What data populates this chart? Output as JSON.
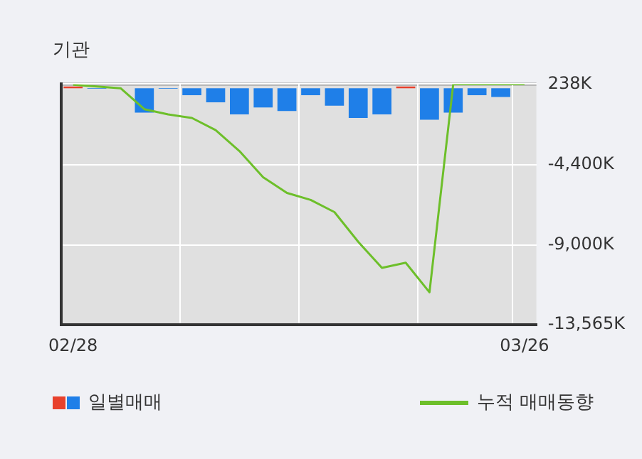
{
  "chart_data": {
    "type": "bar",
    "title": "기관",
    "categories": [
      "02/28",
      null,
      null,
      null,
      null,
      null,
      null,
      null,
      null,
      null,
      null,
      null,
      null,
      null,
      null,
      null,
      null,
      null,
      null,
      "03/26"
    ],
    "series": [
      {
        "name": "일별매매",
        "colors": [
          "#e8412c",
          "#1f7fe8",
          "#1f7fe8",
          "#1f7fe8",
          "#1f7fe8",
          "#1f7fe8",
          "#1f7fe8",
          "#1f7fe8",
          "#1f7fe8",
          "#1f7fe8",
          "#1f7fe8",
          "#1f7fe8",
          "#1f7fe8",
          "#1f7fe8",
          "#e8412c",
          "#1f7fe8",
          "#1f7fe8",
          "#1f7fe8",
          "#1f7fe8",
          "#1f7fe8"
        ],
        "values": [
          100,
          -30,
          null,
          -1400,
          -30,
          -400,
          -800,
          -1500,
          -1100,
          -1300,
          -400,
          -1000,
          -1700,
          -1500,
          100,
          -1800,
          -1400,
          -400,
          -500,
          null
        ]
      },
      {
        "name": "누적 매매동향",
        "type": "line",
        "color": "#6dbf2a",
        "values": [
          200,
          100,
          0,
          -1200,
          -1500,
          -1700,
          -2400,
          -3600,
          -5100,
          -6000,
          -6400,
          -7100,
          -8800,
          -10300,
          -10000,
          -11700,
          238,
          238,
          238,
          238
        ]
      }
    ],
    "ylim": [
      -13565,
      238
    ],
    "yticks": [
      {
        "value": 238,
        "label": "238K"
      },
      {
        "value": -4400,
        "label": "-4,400K"
      },
      {
        "value": -9000,
        "label": "-9,000K"
      },
      {
        "value": -13565,
        "label": "-13,565K"
      }
    ],
    "grid": true,
    "legend": "bottom",
    "marker": "none"
  }
}
